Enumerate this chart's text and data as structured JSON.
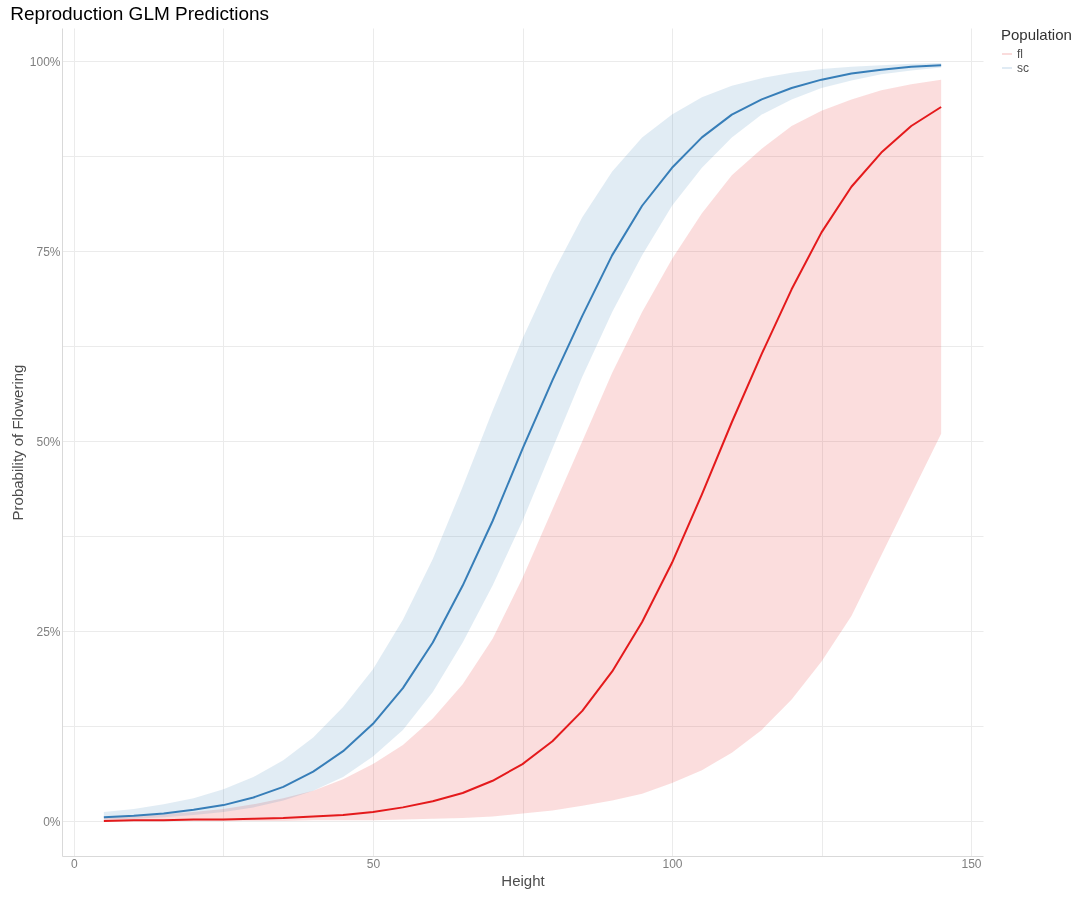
{
  "chart_data": {
    "type": "line",
    "title": "Reproduction GLM Predictions",
    "xlabel": "Height",
    "ylabel": "Probability of Flowering",
    "legend_title": "Population",
    "x": [
      5,
      10,
      15,
      20,
      25,
      30,
      35,
      40,
      45,
      50,
      55,
      60,
      65,
      70,
      75,
      80,
      85,
      90,
      95,
      100,
      105,
      110,
      115,
      120,
      125,
      130,
      135,
      140,
      145
    ],
    "series": [
      {
        "name": "fl",
        "color": "#e41a1c",
        "values": [
          0,
          0.001,
          0.001,
          0.002,
          0.002,
          0.003,
          0.004,
          0.006,
          0.008,
          0.012,
          0.018,
          0.026,
          0.037,
          0.053,
          0.075,
          0.105,
          0.145,
          0.197,
          0.262,
          0.34,
          0.43,
          0.525,
          0.615,
          0.7,
          0.775,
          0.835,
          0.88,
          0.915,
          0.94
        ],
        "lower": [
          0,
          0,
          0,
          0,
          0,
          0,
          0,
          0.001,
          0.001,
          0.001,
          0.002,
          0.003,
          0.004,
          0.006,
          0.01,
          0.014,
          0.02,
          0.027,
          0.036,
          0.05,
          0.067,
          0.09,
          0.12,
          0.16,
          0.21,
          0.27,
          0.35,
          0.43,
          0.51
        ],
        "upper": [
          0.005,
          0.007,
          0.009,
          0.012,
          0.016,
          0.022,
          0.03,
          0.04,
          0.055,
          0.075,
          0.1,
          0.135,
          0.18,
          0.24,
          0.32,
          0.41,
          0.5,
          0.59,
          0.67,
          0.74,
          0.8,
          0.85,
          0.885,
          0.915,
          0.935,
          0.95,
          0.962,
          0.97,
          0.976
        ]
      },
      {
        "name": "sc",
        "color": "#377eb8",
        "values": [
          0.005,
          0.007,
          0.01,
          0.015,
          0.021,
          0.031,
          0.045,
          0.065,
          0.092,
          0.128,
          0.175,
          0.235,
          0.31,
          0.395,
          0.49,
          0.58,
          0.665,
          0.745,
          0.81,
          0.86,
          0.9,
          0.93,
          0.95,
          0.965,
          0.976,
          0.984,
          0.989,
          0.993,
          0.995
        ],
        "lower": [
          0.002,
          0.003,
          0.005,
          0.008,
          0.012,
          0.018,
          0.027,
          0.04,
          0.058,
          0.085,
          0.12,
          0.17,
          0.235,
          0.31,
          0.395,
          0.49,
          0.585,
          0.67,
          0.745,
          0.81,
          0.86,
          0.9,
          0.93,
          0.95,
          0.965,
          0.975,
          0.983,
          0.988,
          0.992
        ],
        "upper": [
          0.012,
          0.016,
          0.022,
          0.03,
          0.042,
          0.058,
          0.08,
          0.11,
          0.15,
          0.2,
          0.265,
          0.345,
          0.44,
          0.54,
          0.635,
          0.72,
          0.795,
          0.855,
          0.9,
          0.93,
          0.953,
          0.968,
          0.978,
          0.985,
          0.99,
          0.993,
          0.995,
          0.997,
          0.998
        ]
      }
    ],
    "xlim": [
      -2,
      152
    ],
    "ylim": [
      -0.046,
      1.044
    ],
    "xticks": [
      0,
      {
        "value": 25,
        "label": null
      },
      50,
      {
        "value": 75,
        "label": null
      },
      100,
      {
        "value": 125,
        "label": null
      },
      150
    ],
    "yticks": [
      {
        "value": 0,
        "label": "0%"
      },
      {
        "value": 0.125,
        "label": null
      },
      {
        "value": 0.25,
        "label": "25%"
      },
      {
        "value": 0.375,
        "label": null
      },
      {
        "value": 0.5,
        "label": "50%"
      },
      {
        "value": 0.625,
        "label": null
      },
      {
        "value": 0.75,
        "label": "75%"
      },
      {
        "value": 0.875,
        "label": null
      },
      {
        "value": 1,
        "label": "100%"
      }
    ],
    "grid": true,
    "legend": "right",
    "marker": "none",
    "line_style": "solid"
  }
}
